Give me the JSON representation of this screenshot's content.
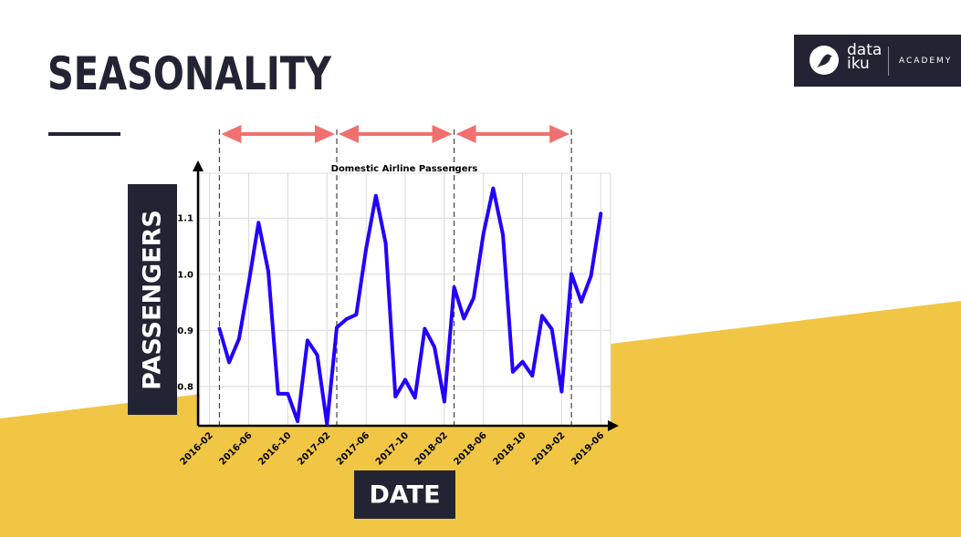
{
  "slide": {
    "title": "SEASONALITY",
    "y_axis_box_label": "PASSENGERS",
    "x_axis_box_label": "DATE"
  },
  "logo": {
    "name_line1": "data",
    "name_line2": "iku",
    "tagline": "ACADEMY"
  },
  "colors": {
    "dark": "#222433",
    "accent_yellow": "#F2C645",
    "line": "#2200ff",
    "arrows": "#f07070"
  },
  "chart_data": {
    "type": "line",
    "title": "Domestic Airline Passengers",
    "xlabel": "",
    "ylabel": "",
    "grid": true,
    "x_tick_labels": [
      "2016-02",
      "2016-06",
      "2016-10",
      "2017-02",
      "2017-06",
      "2017-10",
      "2018-02",
      "2018-06",
      "2018-10",
      "2019-02",
      "2019-06"
    ],
    "y_tick_labels": [
      "0.8",
      "0.9",
      "1.0",
      "1.1"
    ],
    "ylim": [
      0.73,
      1.18
    ],
    "xlim": [
      "2016-01",
      "2019-07"
    ],
    "season_boundaries": [
      "2016-03",
      "2017-03",
      "2018-03",
      "2019-03"
    ],
    "series": [
      {
        "x": [
          "2016-03",
          "2016-04",
          "2016-05",
          "2016-06",
          "2016-07",
          "2016-08",
          "2016-09",
          "2016-10",
          "2016-11",
          "2016-12",
          "2017-01",
          "2017-02",
          "2017-03",
          "2017-04",
          "2017-05",
          "2017-06",
          "2017-07",
          "2017-08",
          "2017-09",
          "2017-10",
          "2017-11",
          "2017-12",
          "2018-01",
          "2018-02",
          "2018-03",
          "2018-04",
          "2018-05",
          "2018-06",
          "2018-07",
          "2018-08",
          "2018-09",
          "2018-10",
          "2018-11",
          "2018-12",
          "2019-01",
          "2019-02",
          "2019-03",
          "2019-04",
          "2019-05",
          "2019-06"
        ],
        "y": [
          0.903,
          0.843,
          0.885,
          0.985,
          1.092,
          1.005,
          0.787,
          0.787,
          0.738,
          0.882,
          0.856,
          0.733,
          0.905,
          0.92,
          0.928,
          1.045,
          1.14,
          1.055,
          0.782,
          0.812,
          0.78,
          0.903,
          0.87,
          0.773,
          0.977,
          0.921,
          0.958,
          1.072,
          1.153,
          1.07,
          0.826,
          0.844,
          0.819,
          0.926,
          0.902,
          0.791,
          1.001,
          0.951,
          0.997,
          1.108
        ]
      }
    ]
  }
}
